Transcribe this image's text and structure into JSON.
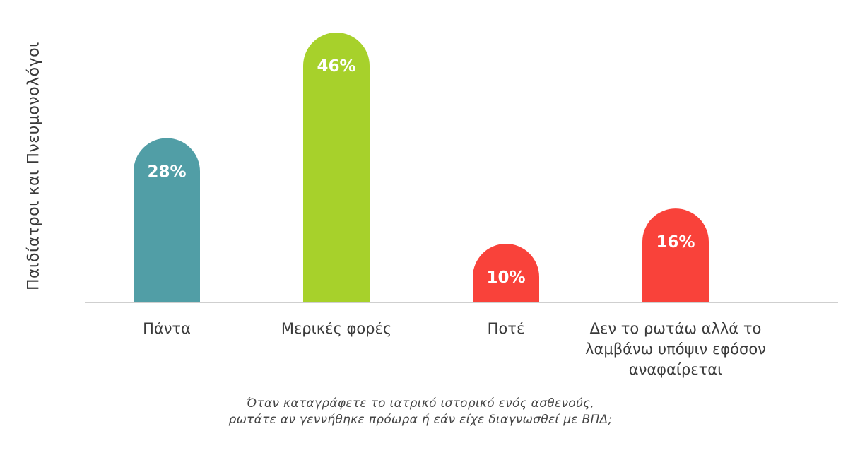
{
  "chart_data": {
    "type": "bar",
    "categories": [
      [
        "Πάντα"
      ],
      [
        "Μερικές φορές"
      ],
      [
        "Ποτέ"
      ],
      [
        "Δεν το ρωτάω αλλά το",
        "λαμβάνω υπόψιν εφόσον",
        "αναφαίρεται"
      ]
    ],
    "values": [
      28,
      46,
      10,
      16
    ],
    "value_labels": [
      "28%",
      "46%",
      "10%",
      "16%"
    ],
    "colors": [
      "#519ea6",
      "#a7d12b",
      "#f9423a",
      "#f9423a"
    ],
    "ylabel": "Παιδίατροι και Πνευμονολόγοι",
    "caption": [
      "Όταν καταγράφετε το ιατρικό ιστορικό ενός ασθενούς,",
      "ρωτάτε αν γεννήθηκε πρόωρα ή εάν είχε διαγνωσθεί με ΒΠΔ;"
    ],
    "grid": false,
    "legend": "none"
  }
}
